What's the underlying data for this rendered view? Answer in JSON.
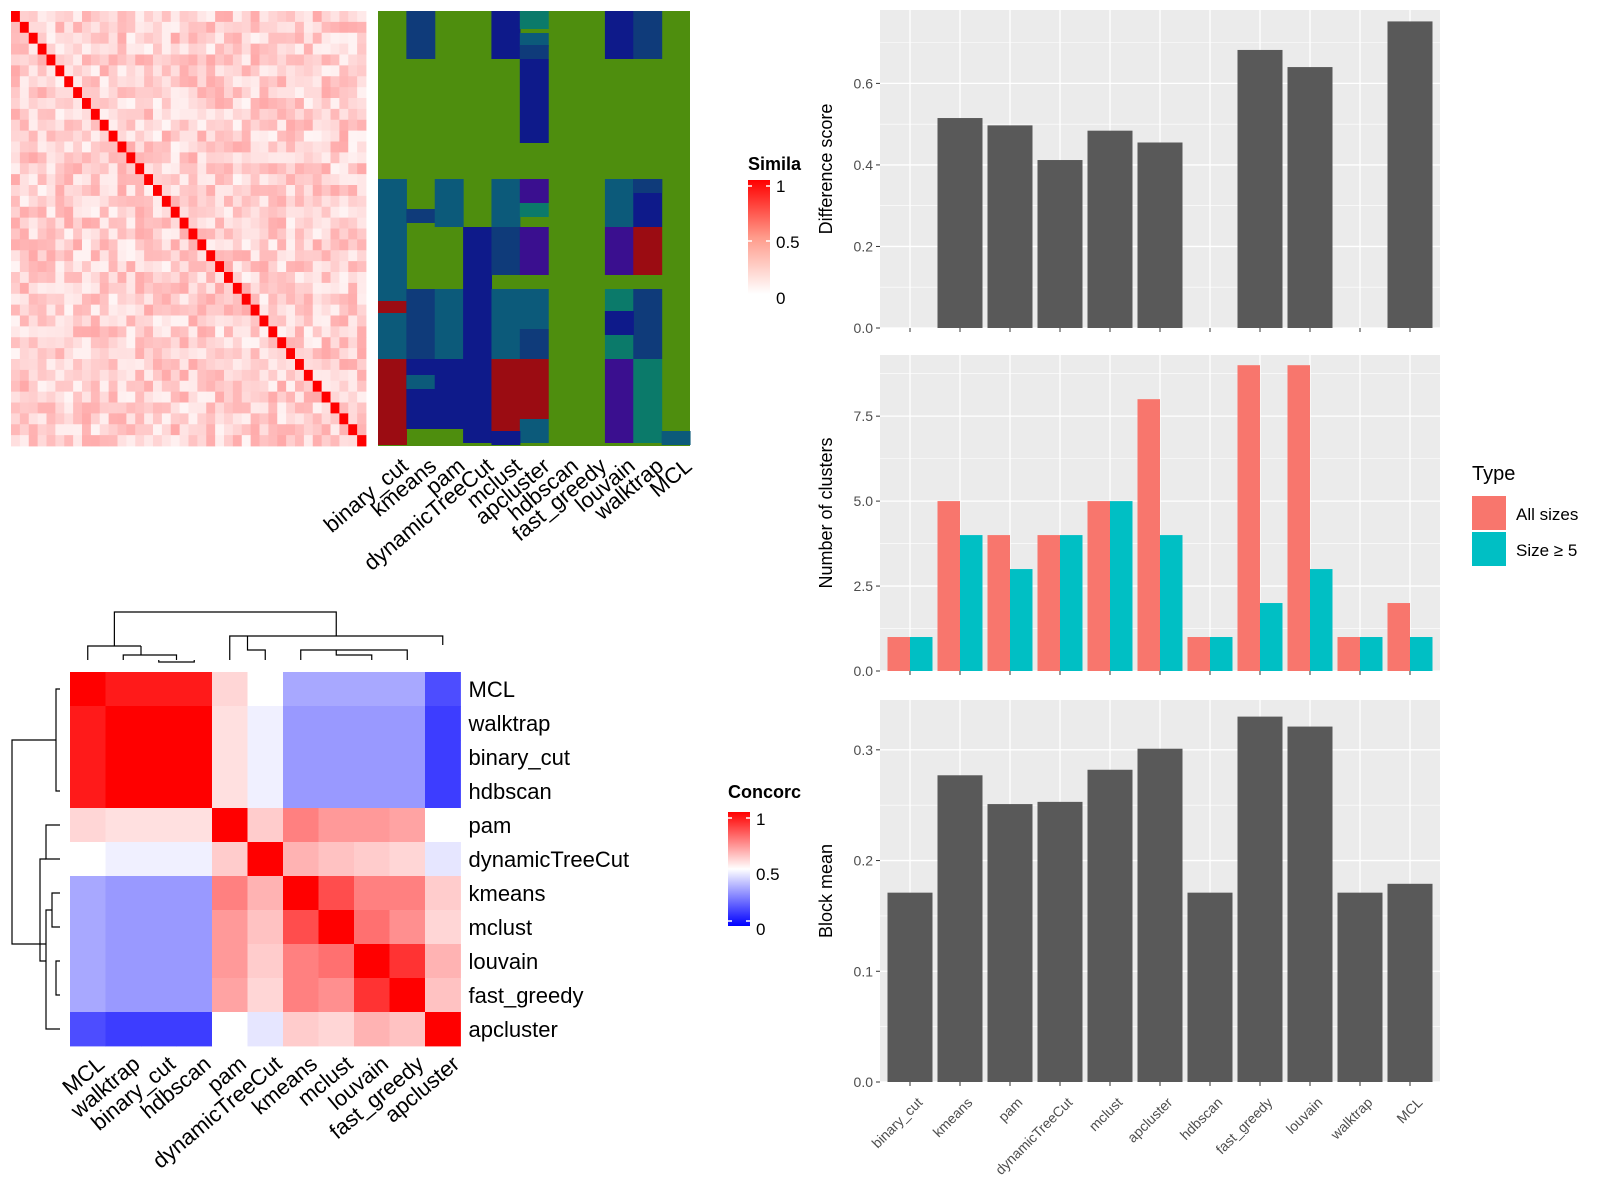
{
  "methods": [
    "binary_cut",
    "kmeans",
    "pam",
    "dynamicTreeCut",
    "mclust",
    "apcluster",
    "hdbscan",
    "fast_greedy",
    "louvain",
    "walktrap",
    "MCL"
  ],
  "colors": {
    "bar_gray": "#595959",
    "all_sizes": "#F8766D",
    "size_ge5": "#00BFC4",
    "panel_bg": "#EBEBEB",
    "grid": "#ffffff",
    "heat_red": "#FF0000",
    "heat_blue": "#0000FF",
    "membership_bg": "#4E8E0E"
  },
  "similarity_legend": {
    "title": "Simila",
    "ticks": [
      "1",
      "0.5",
      "0"
    ]
  },
  "concordance_legend": {
    "title": "Concorc",
    "ticks": [
      "1",
      "0.5",
      "0"
    ]
  },
  "concordance_row_order": [
    "MCL",
    "walktrap",
    "binary_cut",
    "hdbscan",
    "pam",
    "dynamicTreeCut",
    "kmeans",
    "mclust",
    "louvain",
    "fast_greedy",
    "apcluster"
  ],
  "chart_data": [
    {
      "type": "heatmap",
      "title": "",
      "description_matrix": "similarity",
      "n_terms": 40,
      "range": [
        0,
        1
      ],
      "columns": []
    },
    {
      "type": "heatmap",
      "title": "",
      "columns": [
        "binary_cut",
        "kmeans",
        "pam",
        "dynamicTreeCut",
        "mclust",
        "apcluster",
        "hdbscan",
        "fast_greedy",
        "louvain",
        "walktrap",
        "MCL"
      ]
    },
    {
      "type": "heatmap",
      "title": "",
      "rows": [
        "MCL",
        "walktrap",
        "binary_cut",
        "hdbscan",
        "pam",
        "dynamicTreeCut",
        "kmeans",
        "mclust",
        "louvain",
        "fast_greedy",
        "apcluster"
      ],
      "columns": [
        "MCL",
        "walktrap",
        "binary_cut",
        "hdbscan",
        "pam",
        "dynamicTreeCut",
        "kmeans",
        "mclust",
        "louvain",
        "fast_greedy",
        "apcluster"
      ],
      "range": [
        0,
        1
      ],
      "values": [
        [
          1.0,
          0.95,
          0.95,
          0.95,
          0.58,
          0.5,
          0.33,
          0.33,
          0.33,
          0.33,
          0.15
        ],
        [
          0.95,
          1.0,
          1.0,
          1.0,
          0.56,
          0.47,
          0.3,
          0.3,
          0.3,
          0.3,
          0.12
        ],
        [
          0.95,
          1.0,
          1.0,
          1.0,
          0.56,
          0.47,
          0.3,
          0.3,
          0.3,
          0.3,
          0.12
        ],
        [
          0.95,
          1.0,
          1.0,
          1.0,
          0.56,
          0.47,
          0.3,
          0.3,
          0.3,
          0.3,
          0.12
        ],
        [
          0.58,
          0.56,
          0.56,
          0.56,
          1.0,
          0.6,
          0.75,
          0.7,
          0.7,
          0.68,
          0.5
        ],
        [
          0.5,
          0.47,
          0.47,
          0.47,
          0.6,
          1.0,
          0.65,
          0.62,
          0.6,
          0.58,
          0.45
        ],
        [
          0.33,
          0.3,
          0.3,
          0.3,
          0.75,
          0.65,
          1.0,
          0.85,
          0.75,
          0.75,
          0.6
        ],
        [
          0.33,
          0.3,
          0.3,
          0.3,
          0.7,
          0.62,
          0.85,
          1.0,
          0.78,
          0.72,
          0.58
        ],
        [
          0.33,
          0.3,
          0.3,
          0.3,
          0.7,
          0.6,
          0.75,
          0.78,
          1.0,
          0.9,
          0.65
        ],
        [
          0.33,
          0.3,
          0.3,
          0.3,
          0.68,
          0.58,
          0.75,
          0.72,
          0.9,
          1.0,
          0.62
        ],
        [
          0.15,
          0.12,
          0.12,
          0.12,
          0.5,
          0.45,
          0.6,
          0.58,
          0.65,
          0.62,
          1.0
        ]
      ]
    },
    {
      "type": "bar",
      "title": "",
      "xlabel": "",
      "ylabel": "Difference score",
      "categories": [
        "binary_cut",
        "kmeans",
        "pam",
        "dynamicTreeCut",
        "mclust",
        "apcluster",
        "hdbscan",
        "fast_greedy",
        "louvain",
        "walktrap",
        "MCL"
      ],
      "values": [
        null,
        0.515,
        0.497,
        0.412,
        0.484,
        0.455,
        null,
        0.682,
        0.64,
        null,
        0.752
      ],
      "ylim": [
        0,
        0.78
      ],
      "yticks": [
        "0.0",
        "0.2",
        "0.4",
        "0.6"
      ],
      "grid": true
    },
    {
      "type": "bar",
      "title": "",
      "xlabel": "",
      "ylabel": "Number of clusters",
      "categories": [
        "binary_cut",
        "kmeans",
        "pam",
        "dynamicTreeCut",
        "mclust",
        "apcluster",
        "hdbscan",
        "fast_greedy",
        "louvain",
        "walktrap",
        "MCL"
      ],
      "series": [
        {
          "name": "All sizes",
          "values": [
            1,
            5,
            4,
            4,
            5,
            8,
            1,
            9,
            9,
            1,
            2
          ]
        },
        {
          "name": "Size ≥ 5",
          "values": [
            1,
            4,
            3,
            4,
            5,
            4,
            1,
            2,
            3,
            1,
            1
          ]
        }
      ],
      "ylim": [
        0,
        9.3
      ],
      "yticks": [
        "0.0",
        "2.5",
        "5.0",
        "7.5"
      ],
      "legend": {
        "title": "Type",
        "position": "right"
      },
      "grid": true
    },
    {
      "type": "bar",
      "title": "",
      "xlabel": "",
      "ylabel": "Block mean",
      "categories": [
        "binary_cut",
        "kmeans",
        "pam",
        "dynamicTreeCut",
        "mclust",
        "apcluster",
        "hdbscan",
        "fast_greedy",
        "louvain",
        "walktrap",
        "MCL"
      ],
      "values": [
        0.171,
        0.277,
        0.251,
        0.253,
        0.282,
        0.301,
        0.171,
        0.33,
        0.321,
        0.171,
        0.179
      ],
      "ylim": [
        0,
        0.345
      ],
      "yticks": [
        "0.0",
        "0.1",
        "0.2",
        "0.3"
      ],
      "grid": true
    }
  ]
}
